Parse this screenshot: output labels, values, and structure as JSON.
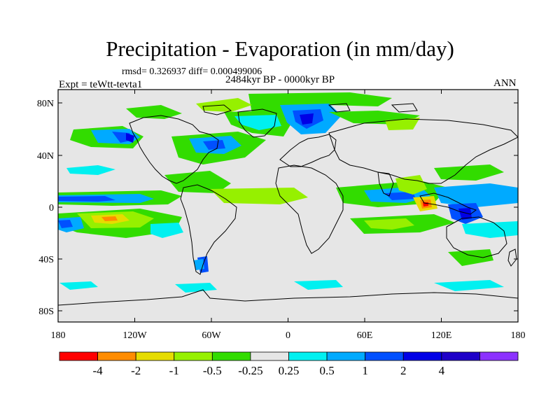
{
  "header": {
    "title": "Precipitation - Evaporation (in mm/day)",
    "stats": "rmsd= 0.326937 diff= 0.000499006",
    "period": "2484kyr BP - 0000kyr BP",
    "experiment": "Expt = teWtt-tevta1",
    "season": "ANN"
  },
  "map": {
    "lat_labels": [
      "80N",
      "40N",
      "0",
      "40S",
      "80S"
    ],
    "lon_labels": [
      "180",
      "120W",
      "60W",
      "0",
      "60E",
      "120E",
      "180"
    ],
    "background_color": "#e6e6e6"
  },
  "colorbar": {
    "colors": [
      "#ff0000",
      "#ff8c00",
      "#e6dc00",
      "#96f000",
      "#32dc00",
      "#e6e6e6",
      "#00f0f0",
      "#00aaff",
      "#0050ff",
      "#0000e6",
      "#1e00c8",
      "#8c32ff"
    ],
    "labels": [
      "-4",
      "-2",
      "-1",
      "-0.5",
      "-0.25",
      "0.25",
      "0.5",
      "1",
      "2",
      "4"
    ]
  }
}
